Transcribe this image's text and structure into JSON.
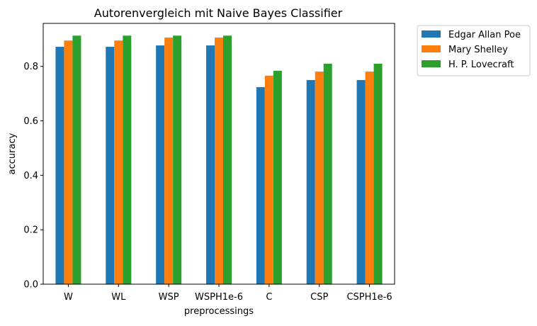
{
  "chart_data": {
    "type": "bar",
    "title": "Autorenvergleich mit Naive Bayes Classifier",
    "xlabel": "preprocessings",
    "ylabel": "accuracy",
    "categories": [
      "W",
      "WL",
      "WSP",
      "WSPH1e-6",
      "C",
      "CSP",
      "CSPH1e-6"
    ],
    "series": [
      {
        "name": "Edgar Allan Poe",
        "color": "#1f77b4",
        "values": [
          0.872,
          0.872,
          0.877,
          0.877,
          0.724,
          0.75,
          0.75
        ]
      },
      {
        "name": "Mary Shelley",
        "color": "#ff7f0e",
        "values": [
          0.895,
          0.895,
          0.906,
          0.906,
          0.766,
          0.781,
          0.781
        ]
      },
      {
        "name": "H. P. Lovecraft",
        "color": "#2ca02c",
        "values": [
          0.913,
          0.913,
          0.913,
          0.913,
          0.784,
          0.81,
          0.81
        ]
      }
    ],
    "yticks": [
      "0.0",
      "0.2",
      "0.4",
      "0.6",
      "0.8"
    ],
    "ylim": [
      0,
      0.958
    ],
    "grid": false,
    "legend_position": "outside-top-right"
  }
}
